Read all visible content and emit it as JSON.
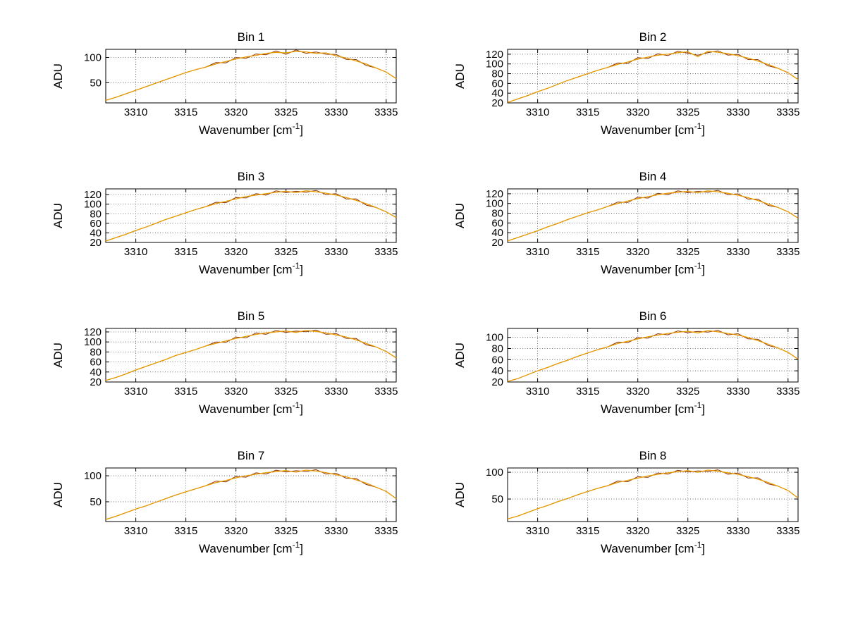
{
  "figure": {
    "background": "#ffffff",
    "rows": 4,
    "cols": 2
  },
  "chart_data": {
    "type": "line",
    "layout": "4x2-grid",
    "grid": true,
    "xlabel_text": "Wavenumber [cm⁻¹]",
    "xlabel_pre": "Wavenumber [cm",
    "xlabel_sup": "-1",
    "xlabel_post": "]",
    "ylabel": "ADU",
    "xlim": [
      3307,
      3336
    ],
    "xticks": [
      3310,
      3315,
      3320,
      3325,
      3330,
      3335
    ],
    "line_color": "#E89B00",
    "raw_overlay_color": "#8B3000",
    "axis_color": "#000000",
    "grid_color": "#555555",
    "x": [
      3307,
      3308,
      3309,
      3310,
      3311,
      3312,
      3313,
      3314,
      3315,
      3316,
      3317,
      3318,
      3319,
      3320,
      3321,
      3322,
      3323,
      3324,
      3325,
      3326,
      3327,
      3328,
      3329,
      3330,
      3331,
      3332,
      3333,
      3334,
      3335,
      3336
    ],
    "charts": [
      {
        "title": "Bin 1",
        "yticks": [
          50,
          100
        ],
        "ylim": [
          10,
          116
        ],
        "y": [
          15,
          21,
          28,
          35,
          42,
          49,
          56,
          63,
          70,
          76,
          81,
          87,
          92,
          97,
          101,
          104,
          108,
          110,
          109,
          112,
          111,
          108,
          109,
          103,
          99,
          93,
          87,
          79,
          71,
          58
        ]
      },
      {
        "title": "Bin 2",
        "yticks": [
          20,
          40,
          60,
          80,
          100,
          120
        ],
        "ylim": [
          20,
          130
        ],
        "y": [
          21,
          28,
          35,
          43,
          50,
          58,
          66,
          73,
          80,
          87,
          93,
          99,
          104,
          110,
          114,
          118,
          120,
          123,
          125,
          115,
          126,
          124,
          121,
          117,
          112,
          106,
          99,
          91,
          82,
          68
        ]
      },
      {
        "title": "Bin 3",
        "yticks": [
          20,
          40,
          60,
          80,
          100,
          120
        ],
        "ylim": [
          20,
          132
        ],
        "y": [
          23,
          30,
          37,
          45,
          52,
          60,
          68,
          75,
          82,
          89,
          95,
          101,
          106,
          111,
          116,
          119,
          122,
          125,
          127,
          124,
          128,
          126,
          123,
          119,
          114,
          108,
          101,
          93,
          84,
          72
        ]
      },
      {
        "title": "Bin 4",
        "yticks": [
          20,
          40,
          60,
          80,
          100,
          120
        ],
        "ylim": [
          20,
          130
        ],
        "y": [
          23,
          30,
          37,
          44,
          52,
          59,
          67,
          74,
          81,
          87,
          94,
          100,
          105,
          110,
          114,
          118,
          121,
          123,
          125,
          122,
          126,
          124,
          121,
          117,
          112,
          106,
          99,
          92,
          83,
          70
        ]
      },
      {
        "title": "Bin 5",
        "yticks": [
          20,
          40,
          60,
          80,
          100,
          120
        ],
        "ylim": [
          20,
          127
        ],
        "y": [
          23,
          29,
          36,
          44,
          51,
          58,
          65,
          73,
          79,
          85,
          92,
          97,
          102,
          107,
          111,
          115,
          118,
          120,
          122,
          119,
          123,
          121,
          118,
          114,
          110,
          104,
          97,
          90,
          81,
          68
        ]
      },
      {
        "title": "Bin 6",
        "yticks": [
          20,
          40,
          60,
          80,
          100
        ],
        "ylim": [
          20,
          116
        ],
        "y": [
          21,
          26,
          33,
          40,
          46,
          53,
          59,
          66,
          72,
          78,
          83,
          89,
          93,
          97,
          101,
          104,
          107,
          109,
          111,
          108,
          112,
          110,
          107,
          104,
          100,
          94,
          88,
          81,
          73,
          61
        ]
      },
      {
        "title": "Bin 7",
        "yticks": [
          50,
          100
        ],
        "ylim": [
          12,
          115
        ],
        "y": [
          16,
          22,
          29,
          36,
          42,
          49,
          56,
          63,
          69,
          75,
          81,
          87,
          91,
          96,
          100,
          103,
          106,
          108,
          110,
          107,
          111,
          109,
          106,
          102,
          98,
          92,
          86,
          78,
          70,
          56
        ]
      },
      {
        "title": "Bin 8",
        "yticks": [
          50,
          100
        ],
        "ylim": [
          8,
          108
        ],
        "y": [
          13,
          18,
          25,
          32,
          38,
          45,
          51,
          58,
          64,
          70,
          75,
          81,
          85,
          89,
          93,
          96,
          99,
          101,
          103,
          100,
          104,
          102,
          99,
          96,
          92,
          87,
          81,
          74,
          66,
          52
        ]
      }
    ]
  }
}
